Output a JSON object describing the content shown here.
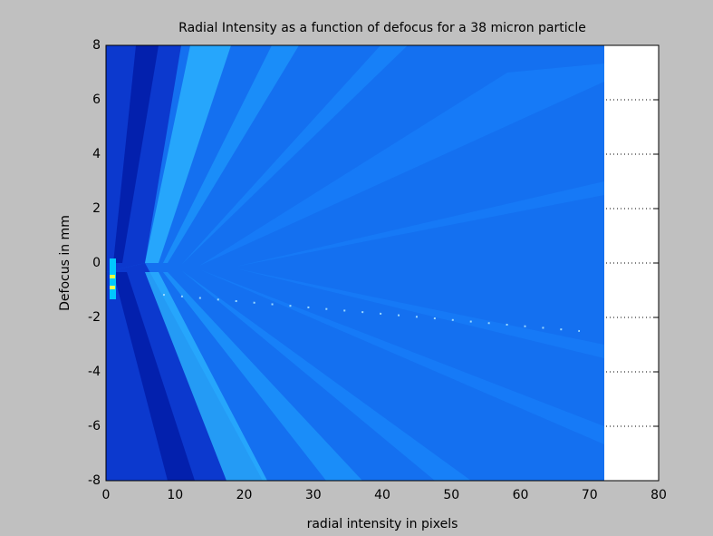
{
  "chart_data": {
    "type": "image",
    "title": "Radial Intensity as a function of defocus for a 38 micron particle",
    "x_label": "radial intensity in pixels",
    "y_label": "Defocus in mm",
    "xlim": [
      0,
      80
    ],
    "xticks": [
      0,
      10,
      20,
      30,
      40,
      50,
      60,
      70,
      80
    ],
    "ylim": [
      -8,
      8
    ],
    "yticks": [
      -8,
      -6,
      -4,
      -2,
      0,
      2,
      4,
      6,
      8
    ],
    "grid": true
  }
}
